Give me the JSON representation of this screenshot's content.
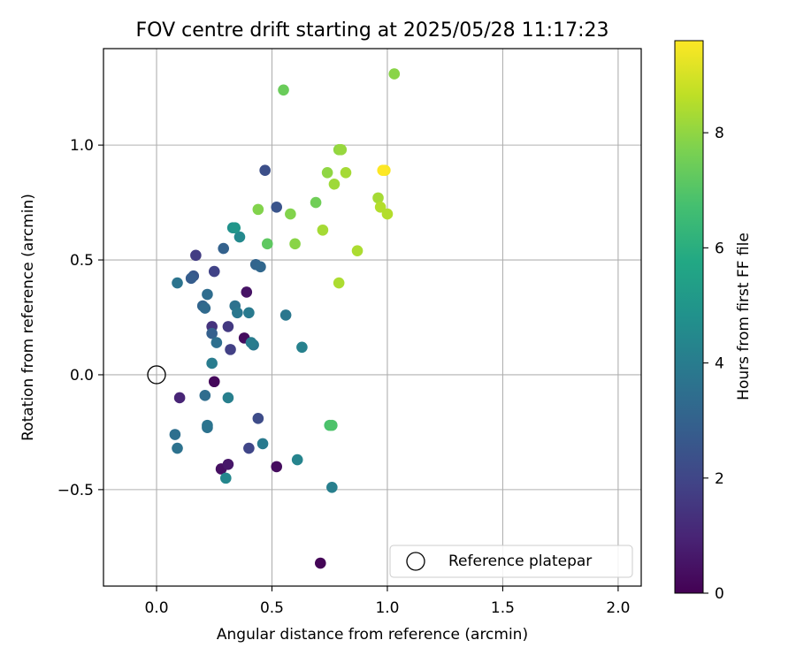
{
  "chart_data": {
    "type": "scatter",
    "title": "FOV centre drift starting at 2025/05/28 11:17:23",
    "xlabel": "Angular distance from reference (arcmin)",
    "ylabel": "Rotation from reference (arcmin)",
    "xlim": [
      -0.23,
      2.1
    ],
    "ylim": [
      -0.92,
      1.42
    ],
    "xticks": [
      0.0,
      0.5,
      1.0,
      1.5,
      2.0
    ],
    "xtick_labels": [
      "0.0",
      "0.5",
      "1.0",
      "1.5",
      "2.0"
    ],
    "yticks": [
      -0.5,
      0.0,
      0.5,
      1.0
    ],
    "ytick_labels": [
      "−0.5",
      "0.0",
      "0.5",
      "1.0"
    ],
    "grid": true,
    "legend": {
      "position": "bottom-right",
      "entries": [
        {
          "label": "Reference platepar",
          "marker": "open-circle"
        }
      ]
    },
    "reference_point": {
      "x": 0.0,
      "y": 0.0
    },
    "colorbar": {
      "label": "Hours from first FF file",
      "colormap": "viridis",
      "range": [
        0,
        9.6
      ],
      "ticks": [
        0,
        2,
        4,
        6,
        8
      ],
      "tick_labels": [
        "0",
        "2",
        "4",
        "6",
        "8"
      ]
    },
    "points": [
      {
        "x": 0.71,
        "y": -0.82,
        "c": 0.1
      },
      {
        "x": 0.52,
        "y": -0.4,
        "c": 0.3
      },
      {
        "x": 0.28,
        "y": -0.41,
        "c": 0.4
      },
      {
        "x": 0.31,
        "y": -0.39,
        "c": 0.6
      },
      {
        "x": 0.25,
        "y": -0.03,
        "c": 0.2
      },
      {
        "x": 0.38,
        "y": 0.16,
        "c": 0.3
      },
      {
        "x": 0.39,
        "y": 0.36,
        "c": 0.5
      },
      {
        "x": 0.1,
        "y": -0.1,
        "c": 1.0
      },
      {
        "x": 0.24,
        "y": 0.21,
        "c": 1.4
      },
      {
        "x": 0.31,
        "y": 0.21,
        "c": 1.6
      },
      {
        "x": 0.32,
        "y": 0.11,
        "c": 1.8
      },
      {
        "x": 0.17,
        "y": 0.52,
        "c": 1.7
      },
      {
        "x": 0.25,
        "y": 0.45,
        "c": 1.9
      },
      {
        "x": 0.4,
        "y": -0.32,
        "c": 2.0
      },
      {
        "x": 0.44,
        "y": -0.19,
        "c": 2.2
      },
      {
        "x": 0.47,
        "y": 0.89,
        "c": 2.3
      },
      {
        "x": 0.52,
        "y": 0.73,
        "c": 2.5
      },
      {
        "x": 0.16,
        "y": 0.43,
        "c": 2.6
      },
      {
        "x": 0.15,
        "y": 0.42,
        "c": 2.8
      },
      {
        "x": 0.24,
        "y": 0.18,
        "c": 2.9
      },
      {
        "x": 0.29,
        "y": 0.55,
        "c": 3.0
      },
      {
        "x": 0.43,
        "y": 0.48,
        "c": 3.1
      },
      {
        "x": 0.45,
        "y": 0.47,
        "c": 3.2
      },
      {
        "x": 0.2,
        "y": 0.3,
        "c": 3.1
      },
      {
        "x": 0.21,
        "y": 0.29,
        "c": 3.3
      },
      {
        "x": 0.22,
        "y": 0.35,
        "c": 3.4
      },
      {
        "x": 0.26,
        "y": 0.14,
        "c": 3.5
      },
      {
        "x": 0.21,
        "y": -0.09,
        "c": 3.4
      },
      {
        "x": 0.22,
        "y": -0.23,
        "c": 3.6
      },
      {
        "x": 0.22,
        "y": -0.22,
        "c": 3.7
      },
      {
        "x": 0.08,
        "y": -0.26,
        "c": 3.5
      },
      {
        "x": 0.09,
        "y": -0.32,
        "c": 3.6
      },
      {
        "x": 0.09,
        "y": 0.4,
        "c": 3.7
      },
      {
        "x": 0.34,
        "y": 0.3,
        "c": 3.6
      },
      {
        "x": 0.35,
        "y": 0.27,
        "c": 3.8
      },
      {
        "x": 0.4,
        "y": 0.27,
        "c": 3.9
      },
      {
        "x": 0.42,
        "y": 0.13,
        "c": 3.8
      },
      {
        "x": 0.41,
        "y": 0.14,
        "c": 4.0
      },
      {
        "x": 0.24,
        "y": 0.05,
        "c": 4.0
      },
      {
        "x": 0.31,
        "y": -0.1,
        "c": 4.1
      },
      {
        "x": 0.46,
        "y": -0.3,
        "c": 3.9
      },
      {
        "x": 0.56,
        "y": 0.26,
        "c": 3.8
      },
      {
        "x": 0.63,
        "y": 0.12,
        "c": 4.2
      },
      {
        "x": 0.61,
        "y": -0.37,
        "c": 4.3
      },
      {
        "x": 0.76,
        "y": -0.49,
        "c": 4.1
      },
      {
        "x": 0.3,
        "y": -0.45,
        "c": 4.4
      },
      {
        "x": 0.36,
        "y": 0.6,
        "c": 4.5
      },
      {
        "x": 0.33,
        "y": 0.64,
        "c": 4.8
      },
      {
        "x": 0.34,
        "y": 0.64,
        "c": 5.0
      },
      {
        "x": 0.75,
        "y": -0.22,
        "c": 6.8
      },
      {
        "x": 0.76,
        "y": -0.22,
        "c": 6.9
      },
      {
        "x": 0.48,
        "y": 0.57,
        "c": 7.2
      },
      {
        "x": 0.55,
        "y": 1.24,
        "c": 7.4
      },
      {
        "x": 0.69,
        "y": 0.75,
        "c": 7.5
      },
      {
        "x": 0.58,
        "y": 0.7,
        "c": 7.8
      },
      {
        "x": 0.44,
        "y": 0.72,
        "c": 7.8
      },
      {
        "x": 0.6,
        "y": 0.57,
        "c": 7.9
      },
      {
        "x": 0.74,
        "y": 0.88,
        "c": 8.0
      },
      {
        "x": 0.79,
        "y": 0.98,
        "c": 8.0
      },
      {
        "x": 0.8,
        "y": 0.98,
        "c": 8.1
      },
      {
        "x": 0.77,
        "y": 0.83,
        "c": 8.2
      },
      {
        "x": 0.82,
        "y": 0.88,
        "c": 8.3
      },
      {
        "x": 0.72,
        "y": 0.63,
        "c": 8.3
      },
      {
        "x": 0.79,
        "y": 0.4,
        "c": 8.4
      },
      {
        "x": 0.87,
        "y": 0.54,
        "c": 8.4
      },
      {
        "x": 0.96,
        "y": 0.77,
        "c": 8.3
      },
      {
        "x": 0.97,
        "y": 0.73,
        "c": 8.5
      },
      {
        "x": 1.0,
        "y": 0.7,
        "c": 8.5
      },
      {
        "x": 1.03,
        "y": 1.31,
        "c": 7.9
      },
      {
        "x": 0.99,
        "y": 0.89,
        "c": 9.5
      },
      {
        "x": 0.98,
        "y": 0.89,
        "c": 9.6
      }
    ]
  }
}
